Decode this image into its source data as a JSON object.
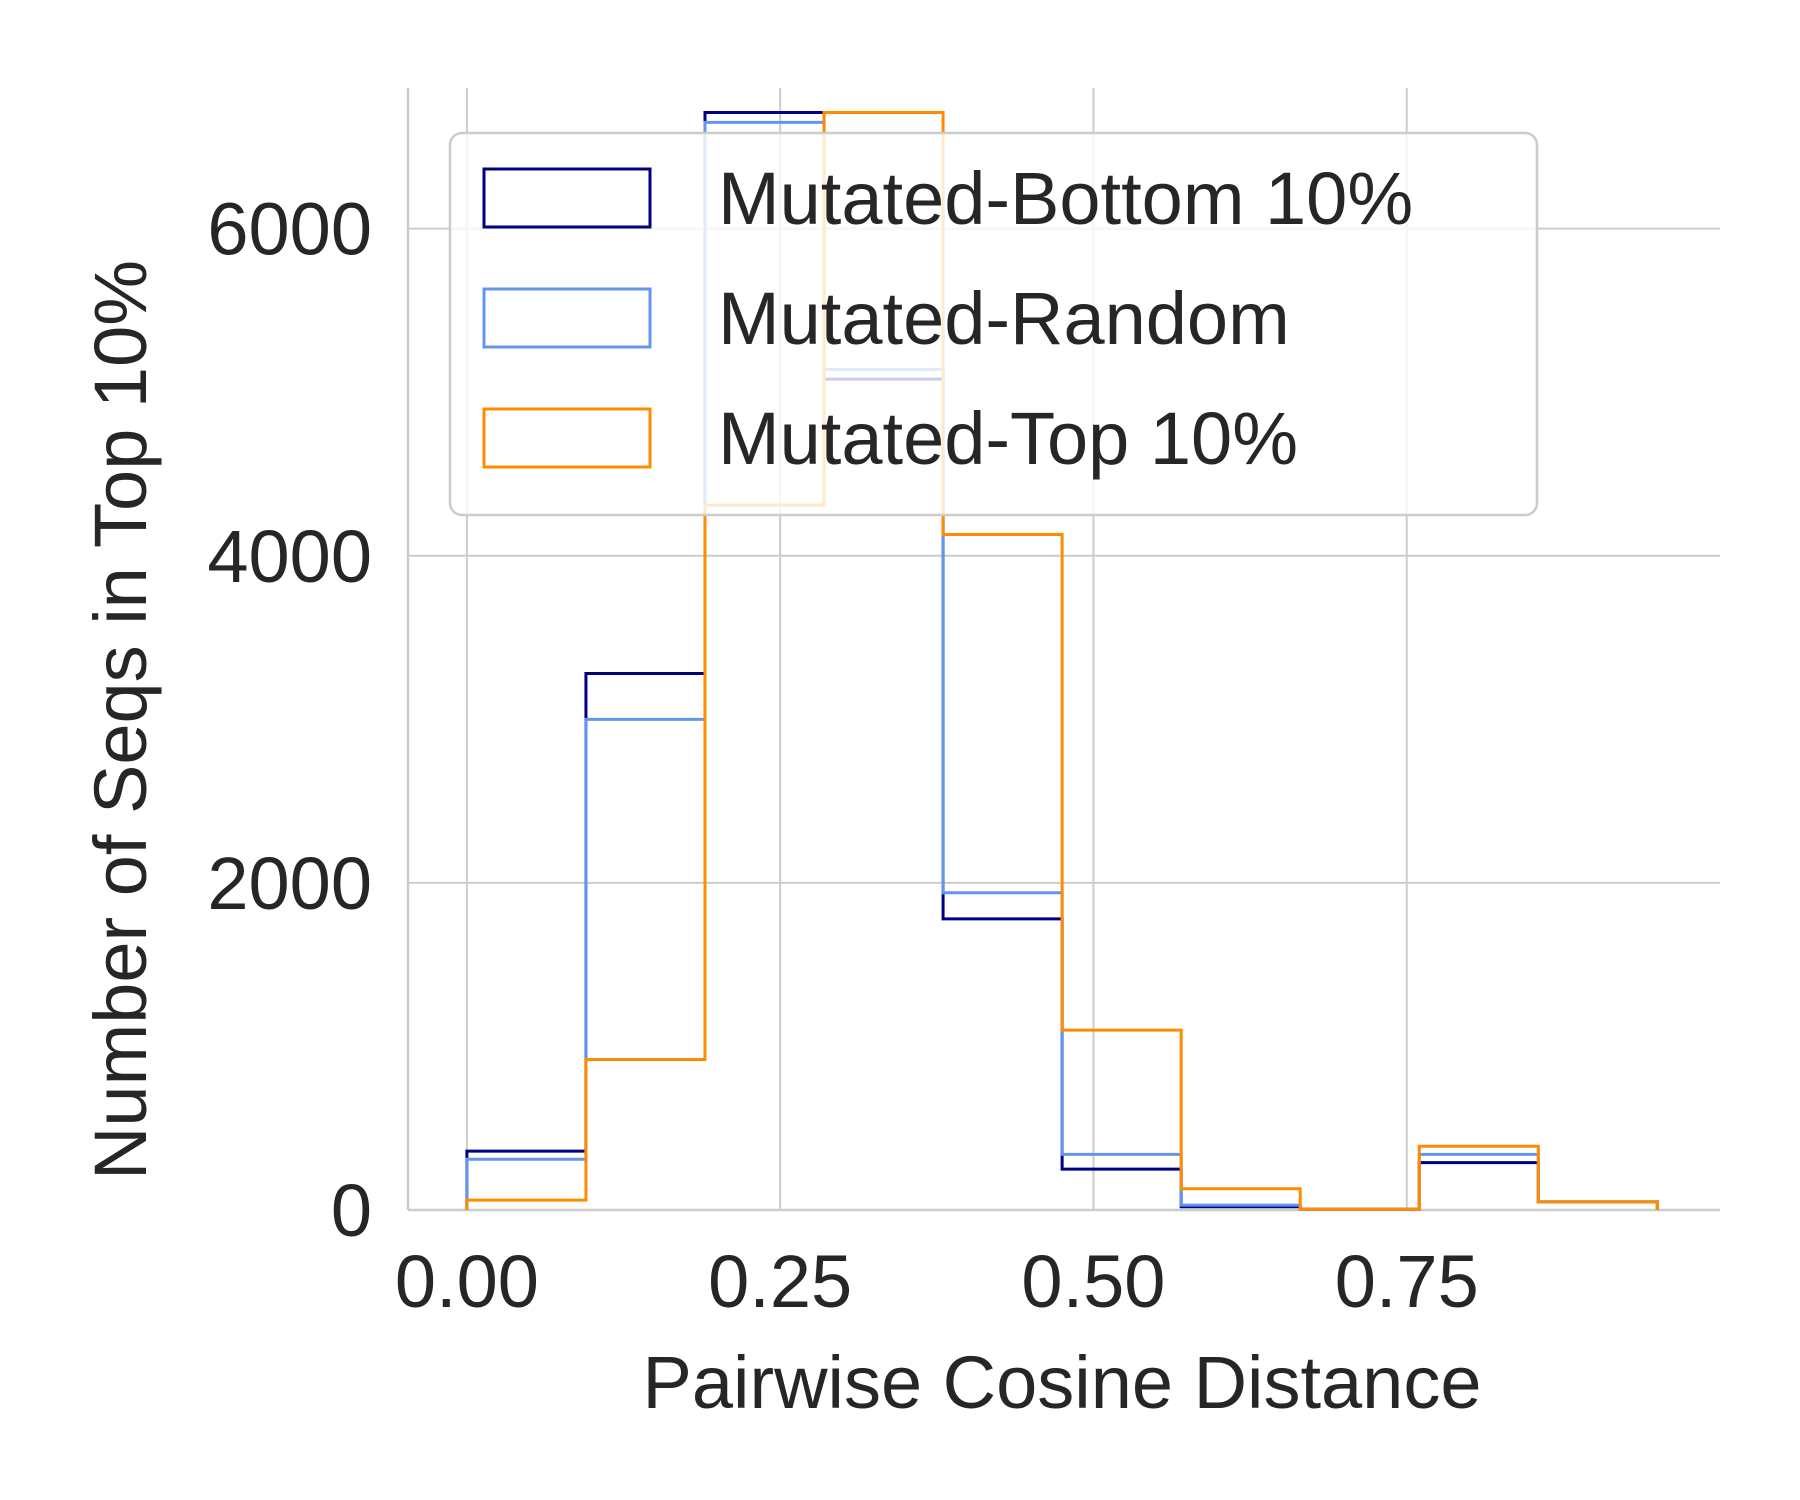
{
  "chart_data": {
    "type": "histogram-step",
    "title": "",
    "xlabel": "Pairwise Cosine Distance",
    "ylabel": "Number of Seqs in Top 10%",
    "xlim": [
      -0.047,
      1.0
    ],
    "ylim": [
      0,
      6860
    ],
    "x_ticks": [
      0.0,
      0.25,
      0.5,
      0.75
    ],
    "x_tick_labels": [
      "0.00",
      "0.25",
      "0.50",
      "0.75"
    ],
    "y_ticks": [
      0,
      2000,
      4000,
      6000
    ],
    "y_tick_labels": [
      "0",
      "2000",
      "4000",
      "6000"
    ],
    "grid": true,
    "legend_position": "upper-left",
    "bin_edges": [
      0.0,
      0.095,
      0.19,
      0.285,
      0.38,
      0.475,
      0.57,
      0.665,
      0.76,
      0.855,
      0.95
    ],
    "series": [
      {
        "name": "Mutated-Bottom 10%",
        "color": "#000080",
        "values": [
          360,
          3280,
          6710,
          5080,
          1780,
          250,
          20,
          5,
          290,
          50
        ]
      },
      {
        "name": "Mutated-Random",
        "color": "#6495ED",
        "values": [
          310,
          3000,
          6650,
          5140,
          1940,
          340,
          30,
          5,
          340,
          50
        ]
      },
      {
        "name": "Mutated-Top 10%",
        "color": "#FF8C00",
        "values": [
          60,
          920,
          4310,
          6710,
          4130,
          1100,
          130,
          5,
          390,
          50
        ]
      }
    ]
  }
}
